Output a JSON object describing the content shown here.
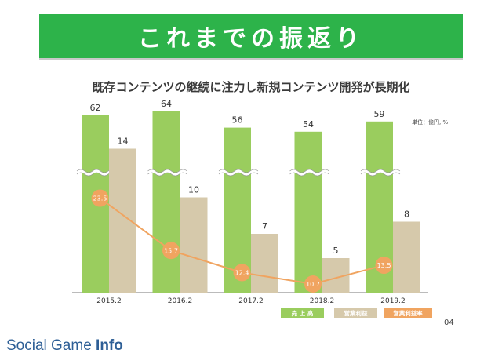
{
  "banner": {
    "title": "これまでの振返り"
  },
  "subtitle": "既存コンテンツの継続に注力し新規コンテンツ開発が長期化",
  "unit_label": "単位：億円, %",
  "page_number": "04",
  "logo": {
    "text_regular": "Social Game ",
    "text_bold": "Info"
  },
  "colors": {
    "banner": "#2db34a",
    "sales": "#9acd5e",
    "profit": "#d6c9ab",
    "margin": "#f0a460",
    "margin_line": "#f0a460"
  },
  "chart_data": {
    "type": "bar",
    "categories": [
      "2015.2",
      "2016.2",
      "2017.2",
      "2018.2",
      "2019.2"
    ],
    "series": [
      {
        "name": "売 上 高",
        "type": "bar",
        "values": [
          62,
          64,
          56,
          54,
          59
        ],
        "axis_break": true
      },
      {
        "name": "営業利益",
        "type": "bar",
        "values": [
          14,
          10,
          7,
          5,
          8
        ]
      },
      {
        "name": "営業利益率",
        "type": "line",
        "values": [
          23.5,
          15.7,
          12.4,
          10.7,
          13.5
        ]
      }
    ],
    "legend_position": "bottom-right"
  }
}
